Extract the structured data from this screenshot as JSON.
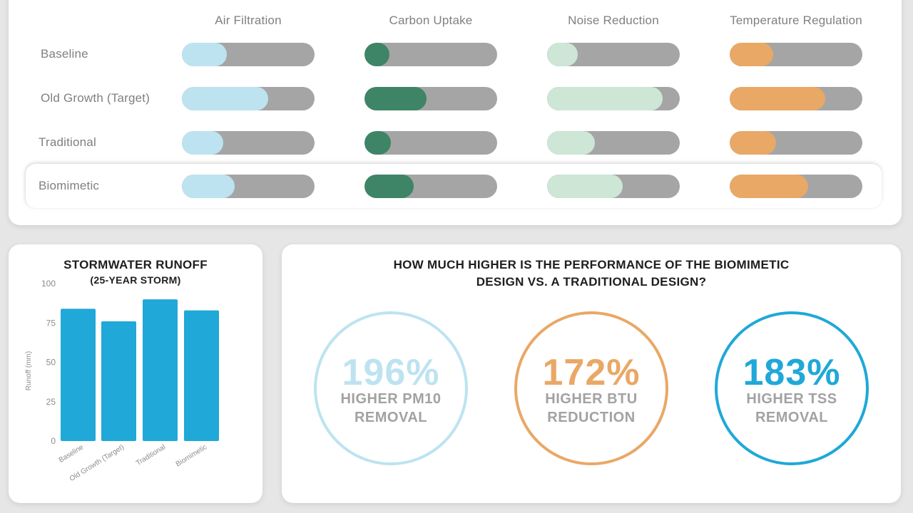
{
  "performance_matrix": {
    "columns": [
      "Air Filtration",
      "Carbon Uptake",
      "Noise Reduction",
      "Temperature Regulation"
    ],
    "rows": [
      "Baseline",
      "Old Growth (Target)",
      "Traditional",
      "Biomimetic"
    ],
    "colors": [
      "#bde3f0",
      "#3d8566",
      "#cde6d6",
      "#e9a866"
    ],
    "track_color": "#a5a5a5",
    "levels": [
      [
        0.34,
        0.19,
        0.23,
        0.33
      ],
      [
        0.65,
        0.47,
        0.87,
        0.72
      ],
      [
        0.31,
        0.2,
        0.36,
        0.35
      ],
      [
        0.4,
        0.37,
        0.57,
        0.59
      ]
    ],
    "highlighted_row": "Biomimetic"
  },
  "runoff": {
    "title_line1": "STORMWATER RUNOFF",
    "title_line2": "(25-YEAR STORM)"
  },
  "comparison": {
    "question_line1": "HOW MUCH HIGHER IS THE PERFORMANCE OF THE BIOMIMETIC",
    "question_line2": "DESIGN VS. A TRADITIONAL DESIGN?",
    "stats": [
      {
        "value": "196%",
        "line1": "HIGHER PM10",
        "line2": "REMOVAL",
        "color": "#bde3f0",
        "value_color": "#bde3f0"
      },
      {
        "value": "172%",
        "line1": "HIGHER BTU",
        "line2": "REDUCTION",
        "color": "#e9a866",
        "value_color": "#e9a866"
      },
      {
        "value": "183%",
        "line1": "HIGHER TSS",
        "line2": "REMOVAL",
        "color": "#1fa8d8",
        "value_color": "#1fa8d8"
      }
    ]
  },
  "chart_data": [
    {
      "type": "bar",
      "title": "STORMWATER RUNOFF",
      "subtitle": "(25-YEAR STORM)",
      "categories": [
        "Baseline",
        "Old Growth (Target)",
        "Traditional",
        "Biomimetic"
      ],
      "values": [
        84,
        76,
        90,
        83
      ],
      "xlabel": "",
      "ylabel": "Runoff (mm)",
      "ylim": [
        0,
        100
      ],
      "yticks": [
        0,
        25,
        50,
        75,
        100
      ],
      "grid": false,
      "color": "#1fa8d8"
    }
  ]
}
